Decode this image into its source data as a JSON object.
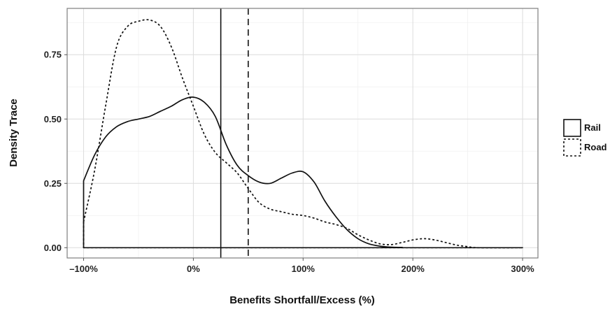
{
  "chart_data": {
    "type": "line",
    "title": "",
    "xlabel": "Benefits Shortfall/Excess (%)",
    "ylabel": "Density Trace",
    "xlim": [
      -115,
      314
    ],
    "ylim": [
      -0.04,
      0.93
    ],
    "x_ticks": [
      {
        "value": -100,
        "label": "–100%"
      },
      {
        "value": 0,
        "label": "0%"
      },
      {
        "value": 100,
        "label": "100%"
      },
      {
        "value": 200,
        "label": "200%"
      },
      {
        "value": 300,
        "label": "300%"
      }
    ],
    "y_ticks": [
      {
        "value": 0,
        "label": "0.00"
      },
      {
        "value": 0.25,
        "label": "0.25"
      },
      {
        "value": 0.5,
        "label": "0.50"
      },
      {
        "value": 0.75,
        "label": "0.75"
      }
    ],
    "grid": true,
    "legend_position": "right",
    "series": [
      {
        "name": "Rail",
        "line_style": "solid",
        "color": "#111111",
        "x": [
          -100,
          -90,
          -80,
          -70,
          -60,
          -50,
          -40,
          -30,
          -20,
          -10,
          0,
          10,
          20,
          30,
          40,
          50,
          60,
          70,
          80,
          90,
          100,
          110,
          120,
          130,
          140,
          150,
          160,
          170,
          180,
          190,
          200,
          300
        ],
        "y": [
          0.26,
          0.36,
          0.43,
          0.47,
          0.49,
          0.5,
          0.51,
          0.53,
          0.55,
          0.575,
          0.585,
          0.565,
          0.51,
          0.4,
          0.32,
          0.28,
          0.255,
          0.25,
          0.27,
          0.29,
          0.295,
          0.255,
          0.18,
          0.12,
          0.07,
          0.035,
          0.015,
          0.006,
          0.002,
          0.001,
          0.0,
          0.0
        ]
      },
      {
        "name": "Road",
        "line_style": "dotted",
        "color": "#111111",
        "x": [
          -100,
          -90,
          -80,
          -70,
          -60,
          -50,
          -40,
          -30,
          -20,
          -10,
          0,
          10,
          20,
          30,
          40,
          50,
          60,
          70,
          80,
          90,
          100,
          110,
          120,
          130,
          140,
          150,
          160,
          170,
          180,
          190,
          200,
          210,
          220,
          230,
          240,
          250,
          260,
          300
        ],
        "y": [
          0.1,
          0.3,
          0.55,
          0.78,
          0.86,
          0.88,
          0.885,
          0.86,
          0.78,
          0.66,
          0.55,
          0.44,
          0.37,
          0.33,
          0.29,
          0.23,
          0.175,
          0.15,
          0.14,
          0.13,
          0.125,
          0.115,
          0.1,
          0.09,
          0.075,
          0.05,
          0.03,
          0.015,
          0.012,
          0.02,
          0.03,
          0.035,
          0.03,
          0.02,
          0.01,
          0.004,
          0.0,
          0.0
        ]
      }
    ],
    "vlines": [
      {
        "x": 25,
        "line_style": "solid"
      },
      {
        "x": 50,
        "line_style": "dashed"
      }
    ]
  }
}
